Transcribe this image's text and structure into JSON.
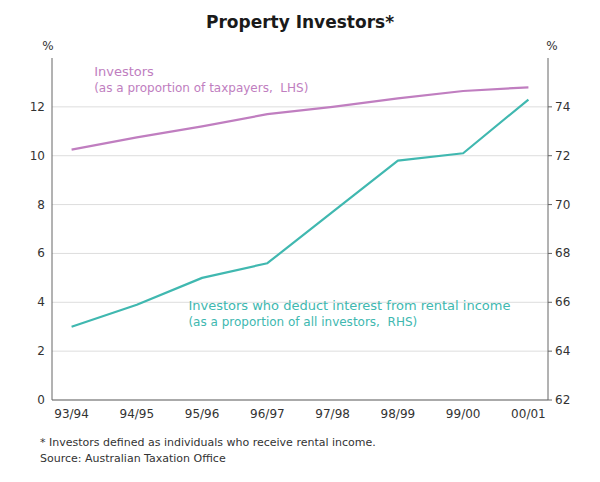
{
  "chart_data": {
    "type": "line",
    "title": "Property Investors*",
    "categories": [
      "93/94",
      "94/95",
      "95/96",
      "96/97",
      "97/98",
      "98/99",
      "99/00",
      "00/01"
    ],
    "series": [
      {
        "name": "Investors",
        "color": "#c07ec0",
        "axis": "y",
        "values": [
          10.25,
          10.75,
          11.2,
          11.7,
          12.0,
          12.35,
          12.65,
          12.8
        ]
      },
      {
        "name": "Investors who deduct interest from rental income",
        "color": "#40b8b0",
        "axis": "y2",
        "values": [
          65.0,
          65.9,
          67.0,
          67.6,
          69.7,
          71.8,
          72.1,
          74.3
        ]
      }
    ],
    "annotations": [
      "(as a proportion of taxpayers,  LHS)",
      "(as a proportion of all investors,  RHS)"
    ],
    "footnotes": [
      "* Investors defined as individuals who receive rental income.",
      "Source: Australian Taxation Office"
    ],
    "ylabel": "%",
    "y2label": "%",
    "ylim": [
      0,
      14
    ],
    "yticks": [
      0,
      2,
      4,
      6,
      8,
      10,
      12
    ],
    "y2lim": [
      62,
      76
    ],
    "y2ticks": [
      62,
      64,
      66,
      68,
      70,
      72,
      74
    ],
    "grid": true
  }
}
